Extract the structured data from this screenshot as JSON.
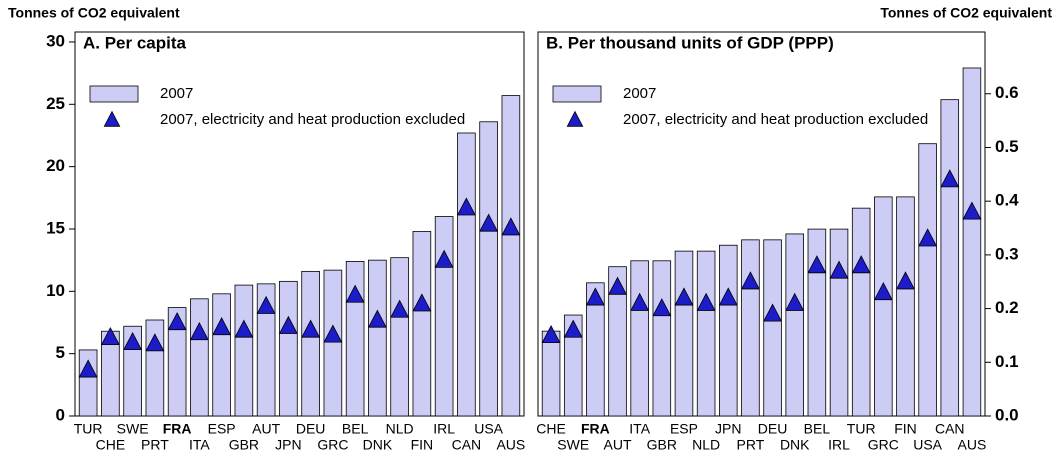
{
  "chart_data": [
    {
      "type": "bar",
      "title": "A. Per capita",
      "y_label": "Tonnes of CO2 equivalent",
      "y_axis_side": "left",
      "highlight_category": "FRA",
      "categories": [
        "TUR",
        "CHE",
        "SWE",
        "PRT",
        "FRA",
        "ITA",
        "ESP",
        "GBR",
        "AUT",
        "JPN",
        "DEU",
        "GRC",
        "BEL",
        "DNK",
        "NLD",
        "FIN",
        "IRL",
        "CAN",
        "USA",
        "AUS"
      ],
      "series": [
        {
          "name": "2007",
          "color": "#ccccf5",
          "marker": "bar",
          "values": [
            5.3,
            6.8,
            7.2,
            7.7,
            8.7,
            9.4,
            9.8,
            10.5,
            10.6,
            10.8,
            11.6,
            11.7,
            12.4,
            12.5,
            12.7,
            14.8,
            16.0,
            22.7,
            23.6,
            25.7
          ]
        },
        {
          "name": "2007, electricity and heat production excluded",
          "color": "#1c1cc8",
          "marker": "triangle",
          "values": [
            3.7,
            6.3,
            5.9,
            5.8,
            7.5,
            6.7,
            7.1,
            6.9,
            8.8,
            7.2,
            6.9,
            6.5,
            9.7,
            7.7,
            8.5,
            9.0,
            12.5,
            16.7,
            15.4,
            15.1
          ]
        }
      ],
      "ylim": [
        0,
        30.8
      ],
      "yticks": [
        0,
        5,
        10,
        15,
        20,
        25,
        30
      ]
    },
    {
      "type": "bar",
      "title": "B. Per thousand units of GDP (PPP)",
      "y_label": "Tonnes of CO2 equivalent",
      "y_axis_side": "right",
      "highlight_category": "FRA",
      "categories": [
        "CHE",
        "SWE",
        "FRA",
        "AUT",
        "ITA",
        "GBR",
        "ESP",
        "NLD",
        "JPN",
        "PRT",
        "DEU",
        "DNK",
        "BEL",
        "IRL",
        "TUR",
        "GRC",
        "FIN",
        "USA",
        "CAN",
        "AUS"
      ],
      "series": [
        {
          "name": "2007",
          "color": "#ccccf5",
          "marker": "bar",
          "values": [
            0.158,
            0.188,
            0.248,
            0.278,
            0.289,
            0.289,
            0.307,
            0.307,
            0.318,
            0.328,
            0.328,
            0.339,
            0.348,
            0.348,
            0.387,
            0.408,
            0.408,
            0.507,
            0.589,
            0.648
          ]
        },
        {
          "name": "2007, electricity and heat production excluded",
          "color": "#1c1cc8",
          "marker": "triangle",
          "values": [
            0.15,
            0.16,
            0.22,
            0.24,
            0.21,
            0.2,
            0.22,
            0.21,
            0.22,
            0.25,
            0.19,
            0.21,
            0.28,
            0.27,
            0.28,
            0.23,
            0.25,
            0.33,
            0.44,
            0.38
          ]
        }
      ],
      "ylim": [
        0,
        0.715
      ],
      "yticks": [
        {
          "value": 0,
          "label": "0.0"
        },
        0.1,
        0.2,
        0.3,
        0.4,
        0.5,
        0.6
      ]
    }
  ]
}
